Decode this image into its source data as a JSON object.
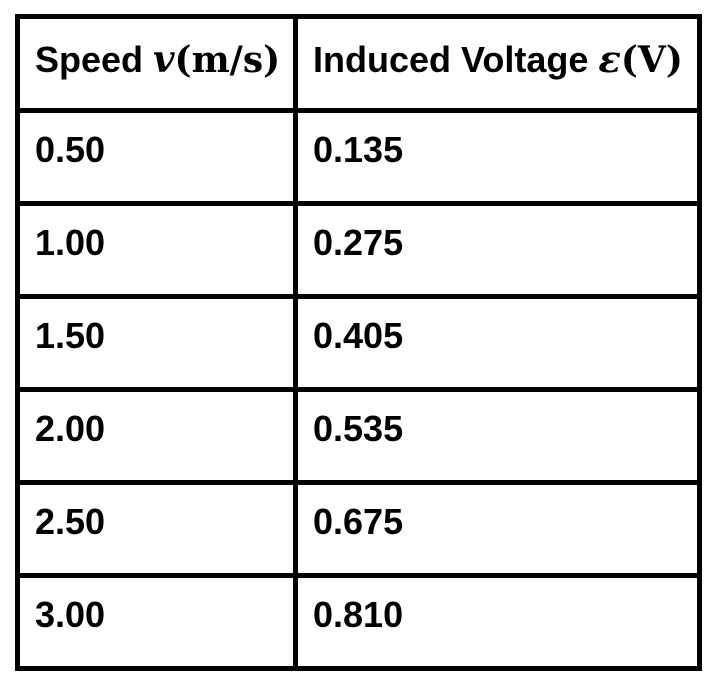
{
  "page": {
    "background_color": "#ffffff",
    "text_color": "#000000",
    "border_color": "#000000"
  },
  "table": {
    "header": {
      "speed_label": "Speed ",
      "speed_symbol": "v",
      "speed_unit": "(m/s)",
      "voltage_label": "Induced Voltage ",
      "voltage_symbol": "ε",
      "voltage_unit": "(V)"
    },
    "rows": [
      {
        "speed": "0.50",
        "voltage": "0.135"
      },
      {
        "speed": "1.00",
        "voltage": "0.275"
      },
      {
        "speed": "1.50",
        "voltage": "0.405"
      },
      {
        "speed": "2.00",
        "voltage": "0.535"
      },
      {
        "speed": "2.50",
        "voltage": "0.675"
      },
      {
        "speed": "3.00",
        "voltage": "0.810"
      }
    ]
  },
  "chart_data": {
    "type": "table",
    "title": "",
    "columns": [
      "Speed v(m/s)",
      "Induced Voltage ε(V)"
    ],
    "categories": [
      0.5,
      1.0,
      1.5,
      2.0,
      2.5,
      3.0
    ],
    "series": [
      {
        "name": "Induced Voltage (V)",
        "values": [
          0.135,
          0.275,
          0.405,
          0.535,
          0.675,
          0.81
        ]
      }
    ],
    "rows": [
      [
        0.5,
        0.135
      ],
      [
        1.0,
        0.275
      ],
      [
        1.5,
        0.405
      ],
      [
        2.0,
        0.535
      ],
      [
        2.5,
        0.675
      ],
      [
        3.0,
        0.81
      ]
    ],
    "xlabel": "Speed v (m/s)",
    "ylabel": "Induced Voltage ε (V)"
  }
}
